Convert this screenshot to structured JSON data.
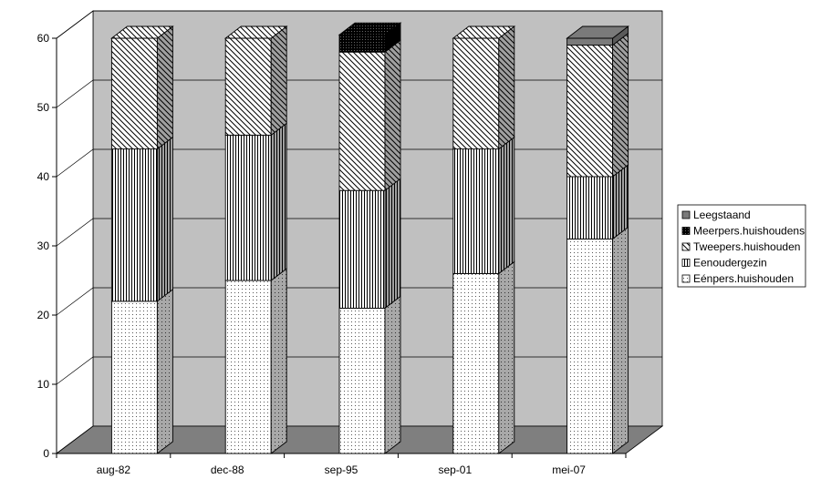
{
  "chart_data": {
    "type": "bar",
    "stacked": true,
    "three_d": true,
    "categories": [
      "aug-82",
      "dec-88",
      "sep-95",
      "sep-01",
      "mei-07"
    ],
    "ylim": [
      0,
      60
    ],
    "yticks": [
      0,
      10,
      20,
      30,
      40,
      50,
      60
    ],
    "grid": true,
    "legend_position": "right",
    "series": [
      {
        "name": "Eénpers.huishouden",
        "pattern": "dots",
        "values": [
          22,
          25,
          21,
          26,
          31
        ]
      },
      {
        "name": "Eenoudergezin",
        "pattern": "vertical-lines",
        "values": [
          22,
          21,
          17,
          18,
          9
        ]
      },
      {
        "name": "Tweepers.huishouden",
        "pattern": "diagonal-lines",
        "values": [
          16,
          14,
          20,
          16,
          19
        ]
      },
      {
        "name": "Meerpers.huishoudens",
        "pattern": "dense-black",
        "values": [
          0,
          0,
          2.5,
          0,
          0
        ]
      },
      {
        "name": "Leegstaand",
        "pattern": "dark-gray",
        "values": [
          0,
          0,
          0,
          0,
          1
        ]
      }
    ],
    "legend_order": [
      "Leegstaand",
      "Meerpers.huishoudens",
      "Tweepers.huishouden",
      "Eenoudergezin",
      "Eénpers.huishouden"
    ]
  }
}
